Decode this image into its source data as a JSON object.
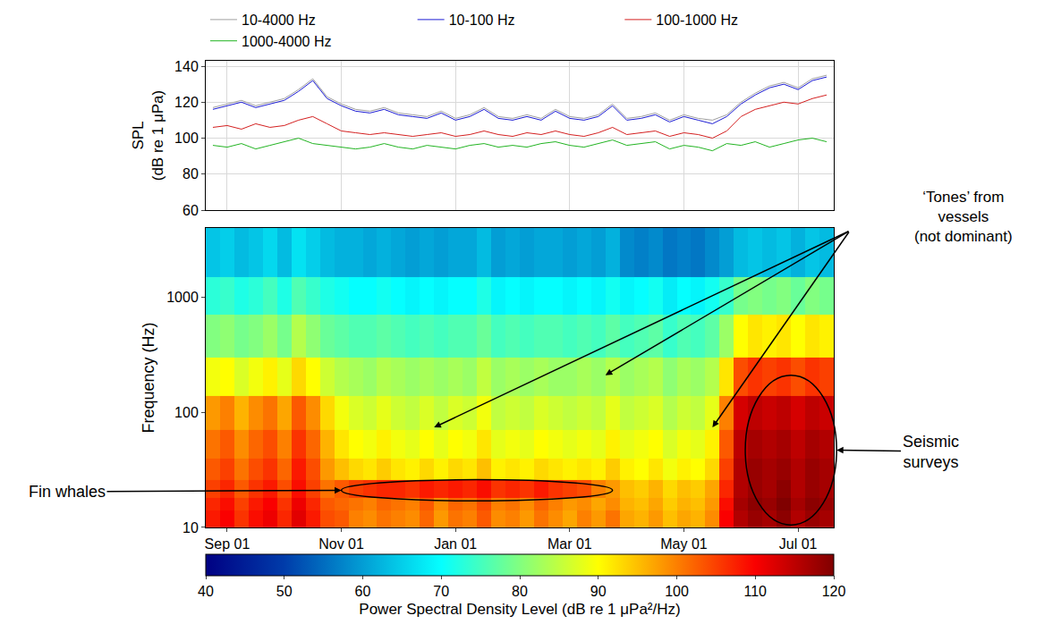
{
  "chart_data": [
    {
      "type": "line",
      "x": [
        null,
        "Sep 01",
        null,
        null,
        null,
        null,
        null,
        null,
        null,
        "Nov 01",
        null,
        null,
        null,
        null,
        null,
        null,
        null,
        "Jan 01",
        null,
        null,
        null,
        null,
        null,
        null,
        null,
        "Mar 01",
        null,
        null,
        null,
        null,
        null,
        null,
        null,
        "May 01",
        null,
        null,
        null,
        null,
        null,
        null,
        null,
        "Jul 01",
        null,
        null
      ],
      "ylabel": [
        "SPL",
        "(dB re 1 μPa)"
      ],
      "ylim": [
        60,
        143
      ],
      "yticks": [
        60,
        80,
        100,
        120,
        140
      ],
      "grid": true,
      "legend": "top",
      "tick_labels": "y",
      "series": [
        {
          "name": "10-4000 Hz",
          "color": "#a0a0a0",
          "values": [
            117,
            119,
            121,
            118,
            120,
            122,
            127,
            133,
            123,
            119,
            116,
            115,
            117,
            114,
            113,
            112,
            115,
            111,
            113,
            117,
            112,
            111,
            113,
            111,
            116,
            112,
            111,
            113,
            119,
            111,
            112,
            114,
            110,
            113,
            111,
            110,
            113,
            120,
            125,
            129,
            131,
            128,
            133,
            135
          ]
        },
        {
          "name": "10-100 Hz",
          "color": "#1c1cd4",
          "values": [
            116,
            118,
            120,
            117,
            119,
            121,
            126,
            132,
            122,
            118,
            115,
            114,
            116,
            113,
            112,
            111,
            114,
            110,
            112,
            116,
            111,
            110,
            112,
            110,
            115,
            111,
            110,
            112,
            118,
            110,
            111,
            113,
            109,
            112,
            110,
            108,
            112,
            119,
            124,
            128,
            130,
            127,
            132,
            134
          ]
        },
        {
          "name": "100-1000 Hz",
          "color": "#d42020",
          "values": [
            106,
            107,
            105,
            108,
            106,
            107,
            110,
            112,
            108,
            104,
            103,
            102,
            103,
            102,
            101,
            102,
            103,
            101,
            102,
            104,
            102,
            101,
            103,
            102,
            104,
            102,
            101,
            103,
            106,
            102,
            103,
            104,
            101,
            103,
            102,
            100,
            104,
            112,
            116,
            118,
            120,
            119,
            122,
            124
          ]
        },
        {
          "name": "1000-4000 Hz",
          "color": "#22b422",
          "values": [
            96,
            95,
            97,
            94,
            96,
            98,
            100,
            97,
            96,
            95,
            94,
            95,
            97,
            95,
            94,
            96,
            95,
            94,
            96,
            97,
            95,
            96,
            95,
            97,
            98,
            96,
            95,
            97,
            99,
            96,
            97,
            98,
            94,
            96,
            95,
            93,
            97,
            96,
            98,
            95,
            97,
            99,
            100,
            98
          ]
        }
      ]
    },
    {
      "type": "heatmap",
      "x": [
        null,
        "Sep 01",
        null,
        null,
        null,
        null,
        null,
        null,
        null,
        "Nov 01",
        null,
        null,
        null,
        null,
        null,
        null,
        null,
        "Jan 01",
        null,
        null,
        null,
        null,
        null,
        null,
        null,
        "Mar 01",
        null,
        null,
        null,
        null,
        null,
        null,
        null,
        "May 01",
        null,
        null,
        null,
        null,
        null,
        null,
        null,
        "Jul 01",
        null,
        null
      ],
      "ylabel": "Frequency (Hz)",
      "log": "y",
      "ylim": [
        10,
        4000
      ],
      "yticks": [
        10,
        100,
        1000
      ],
      "grid": false,
      "color": "Jet",
      "freq_edges": [
        10,
        14,
        18,
        26,
        40,
        70,
        140,
        300,
        700,
        1500,
        4000
      ],
      "cells": [
        [
          108,
          110,
          106,
          109,
          111,
          107,
          112,
          108,
          104,
          103,
          100,
          99,
          101,
          100,
          99,
          102,
          98,
          101,
          100,
          103,
          99,
          100,
          98,
          101,
          99,
          97,
          100,
          98,
          101,
          97,
          96,
          98,
          95,
          97,
          96,
          99,
          110,
          116,
          118,
          117,
          119,
          116,
          118,
          117
        ],
        [
          107,
          109,
          105,
          108,
          110,
          106,
          111,
          107,
          103,
          102,
          101,
          100,
          102,
          101,
          100,
          103,
          99,
          102,
          101,
          104,
          100,
          101,
          99,
          102,
          100,
          98,
          99,
          97,
          99,
          96,
          95,
          97,
          94,
          96,
          95,
          98,
          109,
          117,
          119,
          118,
          120,
          117,
          119,
          118
        ],
        [
          105,
          107,
          103,
          106,
          108,
          104,
          109,
          105,
          101,
          103,
          105,
          106,
          107,
          107,
          106,
          108,
          107,
          108,
          107,
          109,
          106,
          107,
          106,
          108,
          106,
          105,
          104,
          100,
          98,
          95,
          94,
          96,
          93,
          95,
          94,
          97,
          107,
          116,
          118,
          117,
          119,
          116,
          118,
          117
        ],
        [
          103,
          105,
          101,
          104,
          106,
          102,
          108,
          104,
          98,
          95,
          93,
          92,
          94,
          92,
          91,
          93,
          91,
          93,
          92,
          95,
          91,
          92,
          91,
          93,
          92,
          91,
          92,
          91,
          94,
          91,
          90,
          92,
          89,
          91,
          90,
          93,
          105,
          116,
          118,
          117,
          118,
          116,
          118,
          117
        ],
        [
          101,
          103,
          99,
          102,
          104,
          100,
          106,
          102,
          96,
          92,
          90,
          89,
          91,
          89,
          88,
          90,
          88,
          90,
          89,
          92,
          88,
          89,
          88,
          90,
          89,
          88,
          89,
          88,
          91,
          88,
          89,
          90,
          87,
          89,
          88,
          91,
          103,
          115,
          117,
          116,
          117,
          115,
          117,
          116
        ],
        [
          98,
          100,
          96,
          99,
          101,
          97,
          103,
          99,
          93,
          89,
          87,
          86,
          88,
          86,
          85,
          87,
          85,
          87,
          86,
          89,
          85,
          86,
          85,
          87,
          86,
          85,
          86,
          85,
          88,
          85,
          86,
          87,
          84,
          86,
          85,
          88,
          100,
          113,
          115,
          114,
          115,
          113,
          115,
          114
        ],
        [
          89,
          90,
          87,
          89,
          91,
          88,
          93,
          90,
          86,
          84,
          83,
          82,
          84,
          83,
          82,
          83,
          82,
          83,
          82,
          85,
          82,
          83,
          82,
          83,
          82,
          82,
          83,
          82,
          84,
          82,
          83,
          84,
          81,
          83,
          82,
          84,
          92,
          104,
          106,
          105,
          106,
          104,
          106,
          105
        ],
        [
          80,
          81,
          79,
          80,
          82,
          79,
          84,
          81,
          78,
          77,
          76,
          76,
          77,
          76,
          75,
          76,
          75,
          76,
          76,
          78,
          75,
          76,
          75,
          76,
          76,
          75,
          76,
          75,
          77,
          75,
          76,
          77,
          74,
          76,
          75,
          77,
          82,
          90,
          92,
          91,
          92,
          90,
          92,
          91
        ],
        [
          73,
          74,
          72,
          73,
          75,
          72,
          76,
          74,
          72,
          71,
          70,
          70,
          71,
          70,
          69,
          70,
          69,
          70,
          70,
          72,
          69,
          70,
          69,
          70,
          70,
          69,
          70,
          69,
          71,
          69,
          70,
          71,
          68,
          70,
          69,
          71,
          74,
          79,
          80,
          79,
          80,
          78,
          80,
          79
        ],
        [
          64,
          65,
          63,
          64,
          66,
          63,
          67,
          65,
          63,
          62,
          62,
          61,
          62,
          61,
          60,
          61,
          60,
          61,
          61,
          63,
          60,
          61,
          60,
          61,
          61,
          60,
          61,
          60,
          62,
          58,
          57,
          58,
          56,
          57,
          56,
          58,
          60,
          63,
          64,
          63,
          64,
          62,
          64,
          63
        ]
      ],
      "colorbar": {
        "title": "Power Spectral Density Level (dB re 1 μPa²/Hz)",
        "range": [
          40,
          120
        ],
        "ticks": [
          40,
          50,
          60,
          70,
          80,
          90,
          100,
          110,
          120
        ]
      },
      "annotations": [
        {
          "text": [
            "‘Tones’ from",
            "vessels",
            "(not dominant)"
          ],
          "targets": [
            {
              "x": 15.5,
              "y": 74
            },
            {
              "x": 27.5,
              "y": 210
            },
            {
              "x": 35,
              "y": 74
            }
          ]
        },
        {
          "text": "Fin whales",
          "targets": [
            {
              "x": 9,
              "y": 21
            }
          ]
        },
        {
          "text": [
            "Seismic",
            "surveys"
          ],
          "targets": [
            {
              "x": 43.7,
              "y": 47
            }
          ]
        }
      ],
      "ellipses": [
        {
          "x": [
            9,
            28
          ],
          "y": [
            17,
            26
          ]
        },
        {
          "x": [
            37.3,
            43.7
          ],
          "y": [
            10.5,
            210
          ]
        }
      ]
    }
  ]
}
